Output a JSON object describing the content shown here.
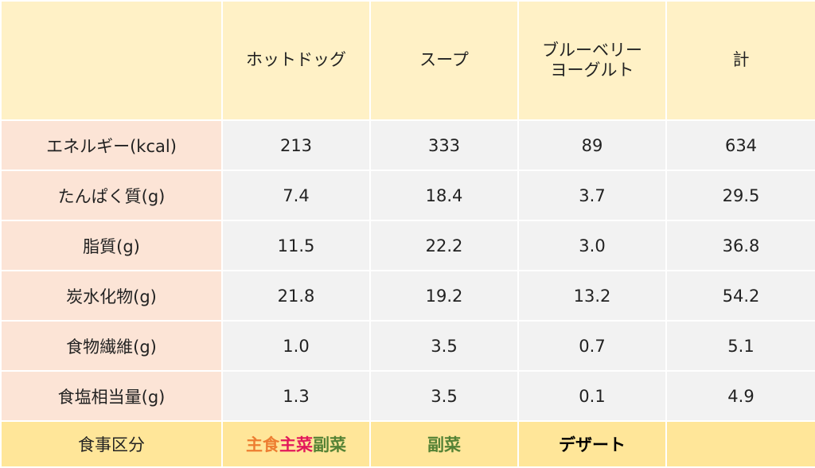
{
  "columns": {
    "corner": "",
    "dishes": [
      "ホットドッグ",
      "スープ",
      "ブルーベリー\nヨーグルト",
      "計"
    ]
  },
  "rows": [
    {
      "label": "エネルギー(kcal)",
      "values": [
        "213",
        "333",
        "89",
        "634"
      ]
    },
    {
      "label": "たんぱく質(g)",
      "values": [
        "7.4",
        "18.4",
        "3.7",
        "29.5"
      ]
    },
    {
      "label": "脂質(g)",
      "values": [
        "11.5",
        "22.2",
        "3.0",
        "36.8"
      ]
    },
    {
      "label": "炭水化物(g)",
      "values": [
        "21.8",
        "19.2",
        "13.2",
        "54.2"
      ]
    },
    {
      "label": "食物繊維(g)",
      "values": [
        "1.0",
        "3.5",
        "0.7",
        "5.1"
      ]
    },
    {
      "label": "食塩相当量(g)",
      "values": [
        "1.3",
        "3.5",
        "0.1",
        "4.9"
      ]
    }
  ],
  "category_row": {
    "label": "食事区分",
    "hotdog": {
      "part1": "主食",
      "part2": "主菜",
      "part3": "副菜"
    },
    "soup": "副菜",
    "yogurt": "デザート",
    "total": ""
  },
  "colors": {
    "header_bg": "#fff1c6",
    "label_bg": "#fce4d6",
    "value_bg": "#f2f2f2",
    "category_bg": "#ffe699",
    "shushoku": "#ed7d31",
    "shusai": "#e2185b",
    "fukusai": "#548235"
  }
}
